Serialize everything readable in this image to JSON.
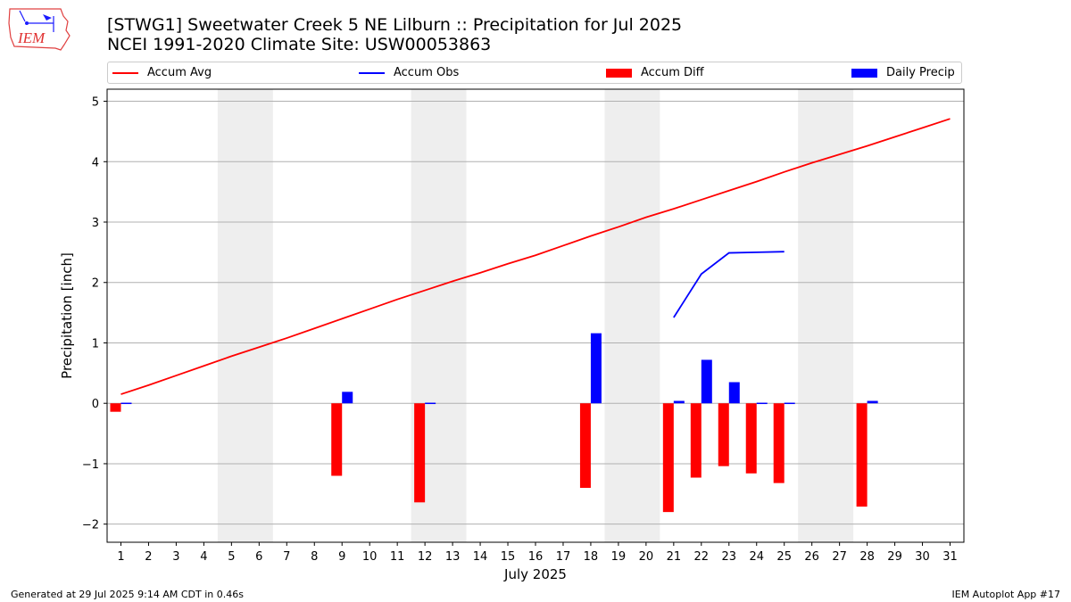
{
  "logo": {
    "text": "IEM"
  },
  "title": {
    "line1": "[STWG1] Sweetwater Creek 5 NE Lilburn :: Precipitation for Jul 2025",
    "line2": "NCEI 1991-2020 Climate Site: USW00053863"
  },
  "legend": {
    "items": [
      {
        "label": "Accum Avg",
        "kind": "line",
        "color": "#ff0000"
      },
      {
        "label": "Accum Obs",
        "kind": "line",
        "color": "#0000ff"
      },
      {
        "label": "Accum Diff",
        "kind": "patch",
        "color": "#ff0000"
      },
      {
        "label": "Daily Precip",
        "kind": "patch",
        "color": "#0000ff"
      }
    ]
  },
  "footer": {
    "left": "Generated at 29 Jul 2025 9:14 AM CDT in 0.46s",
    "right": "IEM Autoplot App #17"
  },
  "chart_data": {
    "type": "bar",
    "title": "[STWG1] Sweetwater Creek 5 NE Lilburn :: Precipitation for Jul 2025",
    "xlabel": "July 2025",
    "ylabel": "Precipitation [inch]",
    "ylim": [
      -2.3,
      5.2
    ],
    "xlim": [
      0.5,
      31.5
    ],
    "yticks": [
      -2,
      -1,
      0,
      1,
      2,
      3,
      4,
      5
    ],
    "x": [
      1,
      2,
      3,
      4,
      5,
      6,
      7,
      8,
      9,
      10,
      11,
      12,
      13,
      14,
      15,
      16,
      17,
      18,
      19,
      20,
      21,
      22,
      23,
      24,
      25,
      26,
      27,
      28,
      29,
      30,
      31
    ],
    "weekend_bands": [
      [
        4.5,
        6.5
      ],
      [
        11.5,
        13.5
      ],
      [
        18.5,
        20.5
      ],
      [
        25.5,
        27.5
      ]
    ],
    "grid": "horizontal",
    "legend_position": "top",
    "colors": {
      "avg": "#ff0000",
      "obs": "#0000ff",
      "band": "#eeeeee"
    },
    "series": [
      {
        "name": "Accum Avg",
        "kind": "line",
        "values": [
          0.15,
          0.3,
          0.46,
          0.62,
          0.78,
          0.93,
          1.08,
          1.24,
          1.4,
          1.56,
          1.72,
          1.87,
          2.02,
          2.16,
          2.31,
          2.45,
          2.61,
          2.77,
          2.92,
          3.08,
          3.22,
          3.37,
          3.52,
          3.67,
          3.83,
          3.98,
          4.12,
          4.26,
          4.41,
          4.56,
          4.71
        ]
      },
      {
        "name": "Accum Obs",
        "kind": "line",
        "values": [
          null,
          null,
          null,
          null,
          null,
          null,
          null,
          null,
          null,
          null,
          null,
          null,
          null,
          null,
          null,
          null,
          null,
          null,
          null,
          null,
          1.42,
          2.14,
          2.49,
          2.5,
          2.51,
          null,
          null,
          null,
          null,
          null,
          null
        ]
      },
      {
        "name": "Accum Diff",
        "kind": "bar",
        "values": [
          -0.14,
          null,
          null,
          null,
          null,
          null,
          null,
          null,
          -1.2,
          null,
          null,
          -1.64,
          null,
          null,
          null,
          null,
          null,
          -1.4,
          null,
          null,
          -1.8,
          -1.23,
          -1.04,
          -1.16,
          -1.32,
          null,
          null,
          -1.71,
          null,
          null,
          null
        ]
      },
      {
        "name": "Daily Precip",
        "kind": "bar",
        "values": [
          0.01,
          null,
          null,
          null,
          null,
          null,
          null,
          null,
          0.19,
          null,
          null,
          0.01,
          null,
          null,
          null,
          null,
          null,
          1.16,
          null,
          null,
          0.04,
          0.72,
          0.35,
          0.01,
          0.01,
          null,
          null,
          0.04,
          null,
          null,
          null
        ]
      }
    ]
  }
}
